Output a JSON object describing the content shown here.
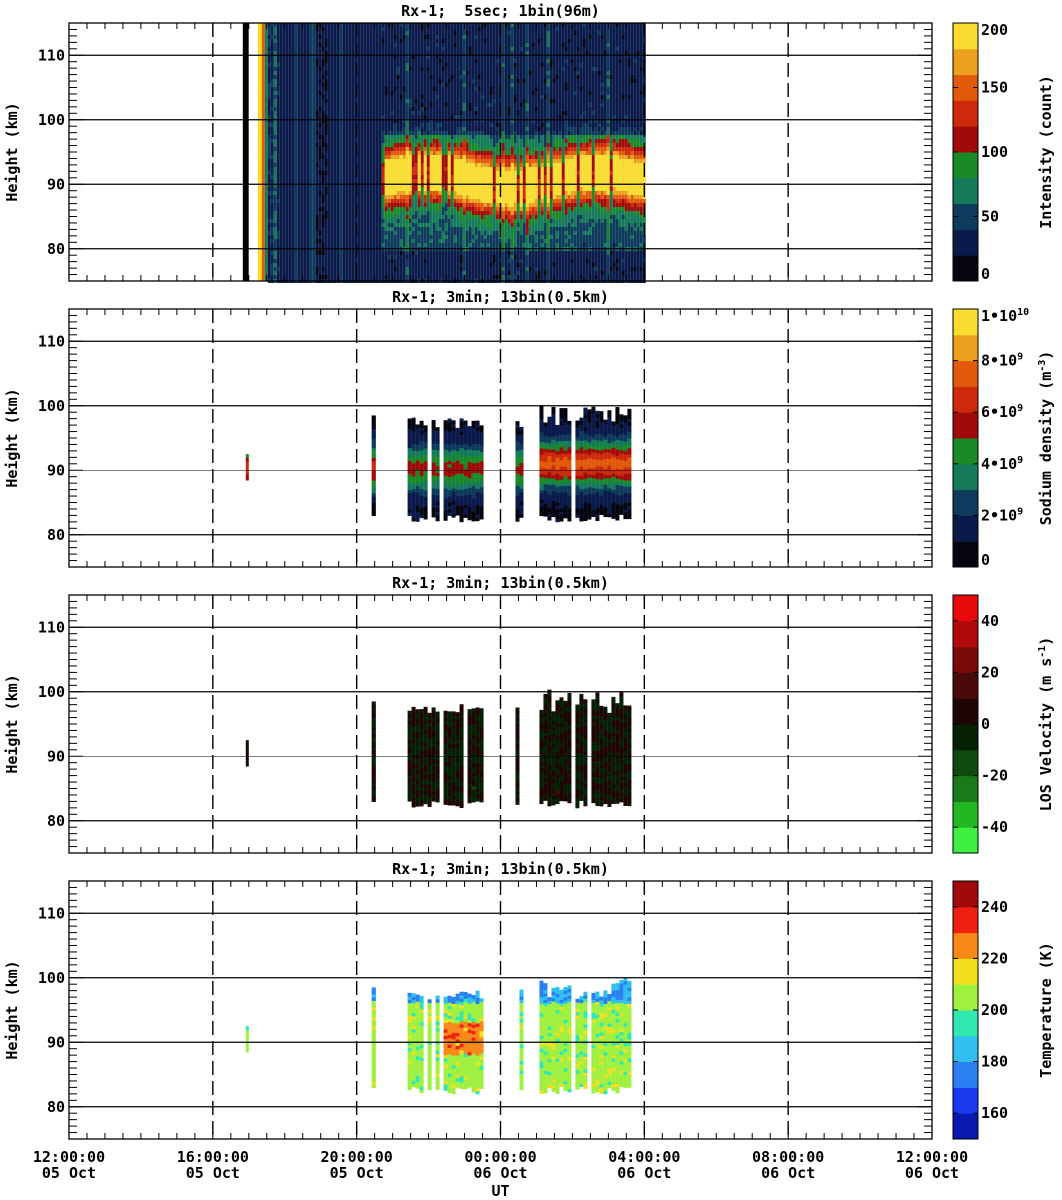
{
  "x_ticks": [
    {
      "time": "12:00:00",
      "date": "05 Oct"
    },
    {
      "time": "16:00:00",
      "date": "05 Oct"
    },
    {
      "time": "20:00:00",
      "date": "05 Oct"
    },
    {
      "time": "00:00:00",
      "date": "06 Oct"
    },
    {
      "time": "04:00:00",
      "date": "06 Oct"
    },
    {
      "time": "08:00:00",
      "date": "06 Oct"
    },
    {
      "time": "12:00:00",
      "date": "06 Oct"
    }
  ],
  "xlabel": "UT",
  "ylabel": "Height (km)",
  "y_ticks": [
    "80",
    "90",
    "100",
    "110"
  ],
  "colors": {
    "background": "#ffffff",
    "axis": "#000000",
    "intensity_scale": [
      "#050510",
      "#0a1a4a",
      "#0e3a5c",
      "#147a5a",
      "#1a8a28",
      "#a00a0a",
      "#cc2a0a",
      "#e05a0a",
      "#eca020",
      "#f8dc30"
    ],
    "density_scale": [
      "#050510",
      "#0a1a4a",
      "#0e3a5c",
      "#147a5a",
      "#1a8a28",
      "#a00a0a",
      "#cc2a0a",
      "#e05a0a",
      "#eca020",
      "#f8dc30"
    ],
    "velocity_scale": [
      "#40f040",
      "#22b822",
      "#1a7a1a",
      "#0e4a0e",
      "#052005",
      "#200505",
      "#4a0a0a",
      "#7a0a0a",
      "#b00a0a",
      "#e80a0a"
    ],
    "temperature_scale": [
      "#0a1ab0",
      "#1a3af0",
      "#2a80f0",
      "#30c0f0",
      "#30e8b0",
      "#a0f040",
      "#f0e020",
      "#f88818",
      "#f02010",
      "#a00a0a"
    ]
  },
  "chart_data": [
    {
      "type": "heatmap",
      "title": "Rx-1;  5sec; 1bin(96m)",
      "xlabel": "",
      "ylabel": "Height (km)",
      "xlim": [
        "05 Oct 12:00:00",
        "06 Oct 12:00:00"
      ],
      "ylim": [
        75,
        115
      ],
      "colorbar": {
        "label": "Intensity (count)",
        "ticks": [
          "0",
          "50",
          "100",
          "150",
          "200"
        ],
        "range": [
          0,
          200
        ]
      },
      "data_span_ut": [
        "05 Oct 17:15",
        "06 Oct 04:00"
      ],
      "saturated_band_ut": [
        "05 Oct 16:50",
        "05 Oct 17:20"
      ],
      "sodium_layer": {
        "time_ut": [
          "05 Oct 20:40",
          "06 Oct 04:00"
        ],
        "height_km": [
          80,
          98
        ],
        "peak_km": 91
      },
      "grid": true
    },
    {
      "type": "heatmap",
      "title": "Rx-1; 3min; 13bin(0.5km)",
      "xlabel": "",
      "ylabel": "Height (km)",
      "xlim": [
        "05 Oct 12:00:00",
        "06 Oct 12:00:00"
      ],
      "ylim": [
        75,
        115
      ],
      "colorbar": {
        "label": "Sodium density (m^-3)",
        "ticks": [
          "0",
          "2•10^9",
          "4•10^9",
          "6•10^9",
          "8•10^9",
          "1•10^10"
        ],
        "range": [
          0,
          10000000000.0
        ]
      },
      "segments_ut": [
        [
          "05 Oct 16:55",
          "05 Oct 17:00"
        ],
        [
          "05 Oct 20:25",
          "05 Oct 20:32"
        ],
        [
          "05 Oct 21:25",
          "05 Oct 22:20"
        ],
        [
          "05 Oct 22:25",
          "05 Oct 23:30"
        ],
        [
          "06 Oct 00:25",
          "06 Oct 00:40"
        ],
        [
          "06 Oct 01:05",
          "06 Oct 02:00"
        ],
        [
          "06 Oct 02:05",
          "06 Oct 03:40"
        ]
      ],
      "height_range_km": [
        82,
        100
      ],
      "grid": true
    },
    {
      "type": "heatmap",
      "title": "Rx-1; 3min; 13bin(0.5km)",
      "xlabel": "",
      "ylabel": "Height (km)",
      "xlim": [
        "05 Oct 12:00:00",
        "06 Oct 12:00:00"
      ],
      "ylim": [
        75,
        115
      ],
      "colorbar": {
        "label": "LOS Velocity (m s^-1)",
        "ticks": [
          "-40",
          "-20",
          "0",
          "20",
          "40"
        ],
        "range": [
          -50,
          50
        ]
      },
      "segments_ut": [
        [
          "05 Oct 16:55",
          "05 Oct 17:00"
        ],
        [
          "05 Oct 20:25",
          "05 Oct 20:32"
        ],
        [
          "05 Oct 21:25",
          "05 Oct 22:20"
        ],
        [
          "05 Oct 22:25",
          "05 Oct 23:30"
        ],
        [
          "06 Oct 00:25",
          "06 Oct 00:40"
        ],
        [
          "06 Oct 01:05",
          "06 Oct 02:00"
        ],
        [
          "06 Oct 02:05",
          "06 Oct 03:40"
        ]
      ],
      "height_range_km": [
        82,
        100
      ],
      "grid": true
    },
    {
      "type": "heatmap",
      "title": "Rx-1; 3min; 13bin(0.5km)",
      "xlabel": "UT",
      "ylabel": "Height (km)",
      "xlim": [
        "05 Oct 12:00:00",
        "06 Oct 12:00:00"
      ],
      "ylim": [
        75,
        115
      ],
      "colorbar": {
        "label": "Temperature (K)",
        "ticks": [
          "160",
          "180",
          "200",
          "220",
          "240"
        ],
        "range": [
          150,
          250
        ]
      },
      "segments_ut": [
        [
          "05 Oct 16:55",
          "05 Oct 17:00"
        ],
        [
          "05 Oct 20:25",
          "05 Oct 20:32"
        ],
        [
          "05 Oct 21:25",
          "05 Oct 22:20"
        ],
        [
          "05 Oct 22:25",
          "05 Oct 23:30"
        ],
        [
          "06 Oct 00:25",
          "06 Oct 00:40"
        ],
        [
          "06 Oct 01:05",
          "06 Oct 02:00"
        ],
        [
          "06 Oct 02:05",
          "06 Oct 03:40"
        ]
      ],
      "height_range_km": [
        82,
        100
      ],
      "grid": true
    }
  ]
}
